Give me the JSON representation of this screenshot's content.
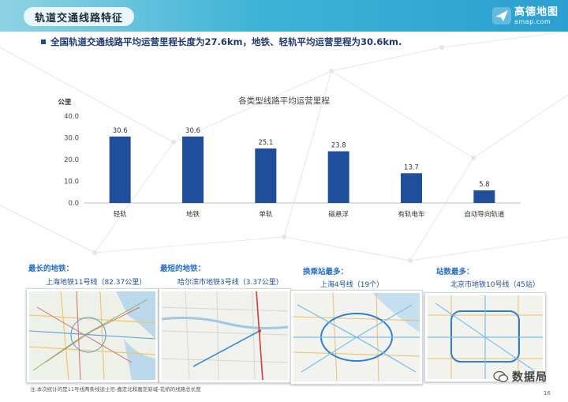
{
  "header": {
    "title": "轨道交通线路特征",
    "logo_cn": "高德地图",
    "logo_en": "amap.com"
  },
  "headline": "全国轨道交通线路平均运营里程长度为27.6km，地铁、轻轨平均运营里程为30.6km.",
  "chart_data": {
    "type": "bar",
    "title": "各类型线路平均运营里程",
    "ylabel": "公里",
    "xlabel": "",
    "categories": [
      "轻轨",
      "地铁",
      "单轨",
      "磁悬浮",
      "有轨电车",
      "自动导向轨道"
    ],
    "values": [
      30.6,
      30.6,
      25.1,
      23.8,
      13.7,
      5.8
    ],
    "value_labels": [
      "30.6",
      "30.6",
      "25.1",
      "23.8",
      "13.7",
      "5.8"
    ],
    "yticks": [
      "0.0",
      "10.0",
      "20.0",
      "30.0",
      "40.0"
    ],
    "ylim": [
      0,
      40
    ],
    "bar_color": "#1f4e9a",
    "grid": false,
    "legend": "none"
  },
  "cards": [
    {
      "label": "最长的地铁：",
      "sub": "上海地铁11号线（82.37公里）"
    },
    {
      "label": "最短的地铁：",
      "sub": "哈尔滨市地铁3号线（3.37公里）"
    },
    {
      "label": "换乘站最多：",
      "sub": "上海4号线（19个）"
    },
    {
      "label": "站数最多：",
      "sub": "北京市地铁10号线（45站）"
    }
  ],
  "watermark": "数据局",
  "footnote": "注:本次统计的是11号线两条线迪士尼-嘉定北和嘉定新城-花桥的线路总长度",
  "page_number": "16"
}
